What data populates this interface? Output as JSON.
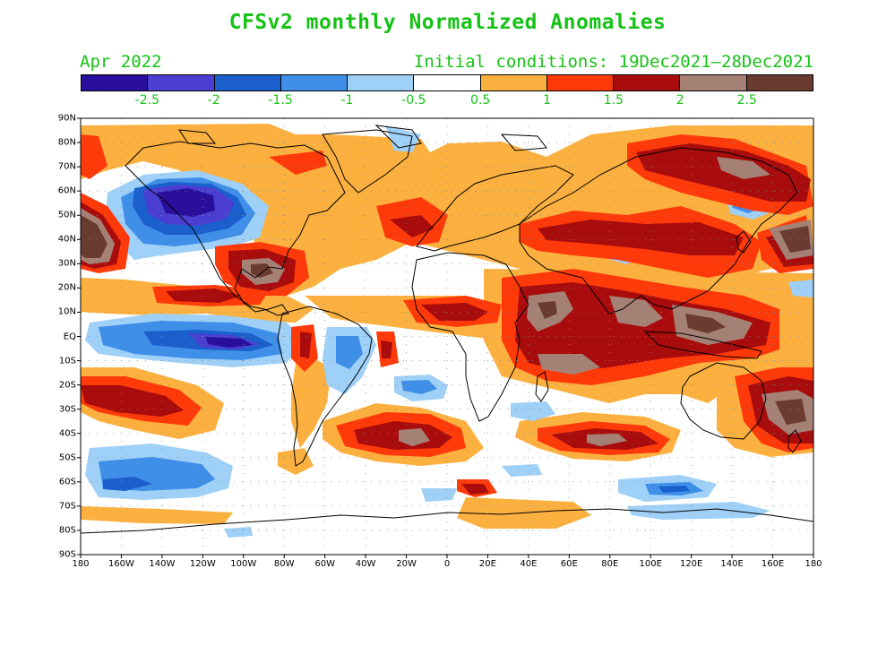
{
  "title": "CFSv2 monthly Normalized Anomalies",
  "valid_month": "Apr 2022",
  "initial_conditions": "Initial conditions: 19Dec2021—28Dec2021",
  "colorbar": {
    "colors": [
      "#2a0f9c",
      "#4a3fd0",
      "#1a5fcc",
      "#3f8fe8",
      "#9fd0f8",
      "#ffffff",
      "#fbb040",
      "#ff3a0a",
      "#a80c0c",
      "#a58075",
      "#6a3c30"
    ],
    "labels": [
      "-2.5",
      "-2",
      "-1.5",
      "-1",
      "-0.5",
      "0.5",
      "1",
      "1.5",
      "2",
      "2.5"
    ]
  },
  "lat_labels": [
    "90N",
    "80N",
    "70N",
    "60N",
    "50N",
    "40N",
    "30N",
    "20N",
    "10N",
    "EQ",
    "10S",
    "20S",
    "30S",
    "40S",
    "50S",
    "60S",
    "70S",
    "80S",
    "90S"
  ],
  "lon_labels": [
    "180",
    "160W",
    "140W",
    "120W",
    "100W",
    "80W",
    "60W",
    "40W",
    "20W",
    "0",
    "20E",
    "40E",
    "60E",
    "80E",
    "100E",
    "120E",
    "140E",
    "160E",
    "180"
  ]
}
